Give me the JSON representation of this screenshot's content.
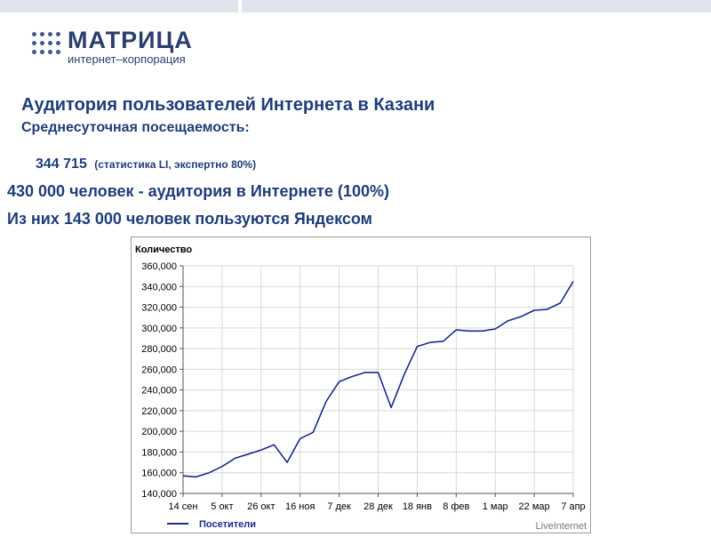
{
  "logo": {
    "name": "МАТРИЦА",
    "tagline": "интернет–корпорация",
    "dot_color": "#3f5a8c"
  },
  "slide": {
    "title": "Аудитория пользователей Интернета в Казани",
    "subtitle": "Среднесуточная посещаемость:",
    "stat_value": "344 715",
    "stat_note": "(статистика LI, экспертно 80%)",
    "line1": "430 000 человек -  аудитория в Интернете (100%)",
    "line2": "Из них 143 000 человек пользуются Яндексом"
  },
  "colors": {
    "text": "#1f3d7a",
    "series": "#1c2a8c",
    "grid": "#d9d9d9",
    "topbar": "#dfe4ec"
  },
  "chart_data": {
    "type": "line",
    "ylabel": "Количество",
    "xlabel": "",
    "source": "LiveInternet",
    "ylim": [
      140000,
      360000
    ],
    "yticks": [
      140000,
      160000,
      180000,
      200000,
      220000,
      240000,
      260000,
      280000,
      300000,
      320000,
      340000,
      360000
    ],
    "ytick_labels": [
      "140,000",
      "160,000",
      "180,000",
      "200,000",
      "220,000",
      "240,000",
      "260,000",
      "280,000",
      "300,000",
      "320,000",
      "340,000",
      "360,000"
    ],
    "xtick_labels": [
      "14 сен",
      "5 окт",
      "26 окт",
      "16 ноя",
      "7 дек",
      "28 дек",
      "18 янв",
      "8 фев",
      "1 мар",
      "22 мар",
      "7 апр"
    ],
    "grid": true,
    "legend": "bottom-left",
    "series": [
      {
        "name": "Посетители",
        "values": [
          157000,
          156000,
          160000,
          166000,
          174000,
          178000,
          182000,
          187000,
          170000,
          193000,
          199000,
          229000,
          248000,
          253000,
          257000,
          257000,
          223000,
          255000,
          282000,
          286000,
          287000,
          298000,
          297000,
          297000,
          299000,
          307000,
          311000,
          317000,
          318000,
          324000,
          345000
        ]
      }
    ]
  }
}
